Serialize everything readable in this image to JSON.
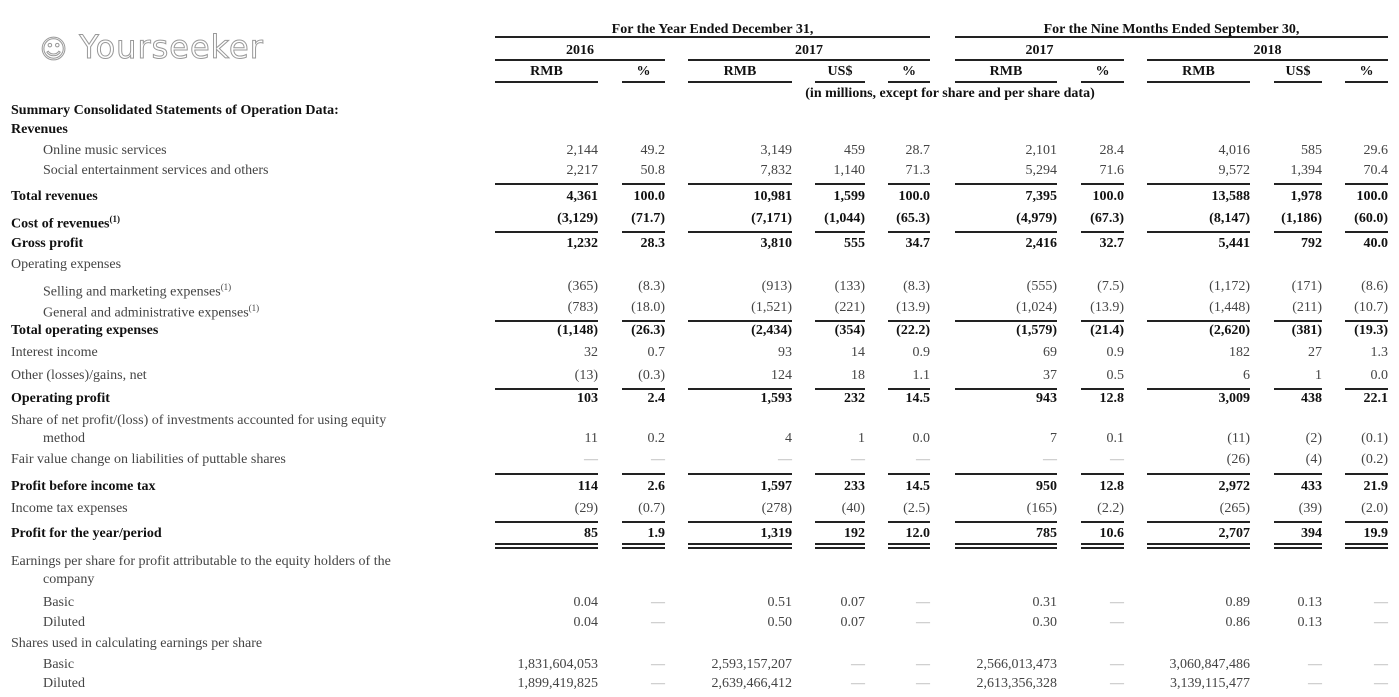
{
  "header": {
    "group_year": "For the Year Ended December 31,",
    "group_nine": "For the Nine Months Ended September 30,",
    "years": [
      "2016",
      "2017",
      "2017",
      "2018"
    ],
    "units": [
      "RMB",
      "%",
      "RMB",
      "US$",
      "%",
      "RMB",
      "%",
      "RMB",
      "US$",
      "%"
    ],
    "note": "(in millions, except for share and per share data)"
  },
  "rows": [
    {
      "label": "Summary Consolidated Statements of Operation Data:",
      "bold": true
    },
    {
      "label": "Revenues",
      "bold": true
    },
    {
      "label": "Online music services",
      "indent": true,
      "values": [
        "2,144",
        "49.2",
        "3,149",
        "459",
        "28.7",
        "2,101",
        "28.4",
        "4,016",
        "585",
        "29.6"
      ]
    },
    {
      "label": "Social entertainment services and others",
      "indent": true,
      "values": [
        "2,217",
        "50.8",
        "7,832",
        "1,140",
        "71.3",
        "5,294",
        "71.6",
        "9,572",
        "1,394",
        "70.4"
      ]
    },
    {
      "label": "Total revenues",
      "bold": true,
      "values": [
        "4,361",
        "100.0",
        "10,981",
        "1,599",
        "100.0",
        "7,395",
        "100.0",
        "13,588",
        "1,978",
        "100.0"
      ]
    },
    {
      "label": "Cost of revenues",
      "sup": "(1)",
      "bold": true,
      "values": [
        "(3,129)",
        "(71.7)",
        "(7,171)",
        "(1,044)",
        "(65.3)",
        "(4,979)",
        "(67.3)",
        "(8,147)",
        "(1,186)",
        "(60.0)"
      ]
    },
    {
      "label": "Gross profit",
      "bold": true,
      "values": [
        "1,232",
        "28.3",
        "3,810",
        "555",
        "34.7",
        "2,416",
        "32.7",
        "5,441",
        "792",
        "40.0"
      ]
    },
    {
      "label": "Operating expenses"
    },
    {
      "label": "Selling and marketing expenses",
      "sup": "(1)",
      "indent": true,
      "values": [
        "(365)",
        "(8.3)",
        "(913)",
        "(133)",
        "(8.3)",
        "(555)",
        "(7.5)",
        "(1,172)",
        "(171)",
        "(8.6)"
      ]
    },
    {
      "label": "General and administrative expenses",
      "sup": "(1)",
      "indent": true,
      "values": [
        "(783)",
        "(18.0)",
        "(1,521)",
        "(221)",
        "(13.9)",
        "(1,024)",
        "(13.9)",
        "(1,448)",
        "(211)",
        "(10.7)"
      ]
    },
    {
      "label": "Total operating expenses",
      "bold": true,
      "values": [
        "(1,148)",
        "(26.3)",
        "(2,434)",
        "(354)",
        "(22.2)",
        "(1,579)",
        "(21.4)",
        "(2,620)",
        "(381)",
        "(19.3)"
      ]
    },
    {
      "label": "Interest income",
      "values": [
        "32",
        "0.7",
        "93",
        "14",
        "0.9",
        "69",
        "0.9",
        "182",
        "27",
        "1.3"
      ]
    },
    {
      "label": "Other (losses)/gains, net",
      "values": [
        "(13)",
        "(0.3)",
        "124",
        "18",
        "1.1",
        "37",
        "0.5",
        "6",
        "1",
        "0.0"
      ]
    },
    {
      "label": "Operating profit",
      "bold": true,
      "values": [
        "103",
        "2.4",
        "1,593",
        "232",
        "14.5",
        "943",
        "12.8",
        "3,009",
        "438",
        "22.1"
      ]
    },
    {
      "label": "Share of net profit/(loss) of investments accounted for using equity",
      "label2": "method",
      "values": [
        "11",
        "0.2",
        "4",
        "1",
        "0.0",
        "7",
        "0.1",
        "(11)",
        "(2)",
        "(0.1)"
      ]
    },
    {
      "label": "Fair value change on liabilities of puttable shares",
      "values": [
        "—",
        "—",
        "—",
        "—",
        "—",
        "—",
        "—",
        "(26)",
        "(4)",
        "(0.2)"
      ]
    },
    {
      "label": "Profit before income tax",
      "bold": true,
      "values": [
        "114",
        "2.6",
        "1,597",
        "233",
        "14.5",
        "950",
        "12.8",
        "2,972",
        "433",
        "21.9"
      ]
    },
    {
      "label": "Income tax expenses",
      "values": [
        "(29)",
        "(0.7)",
        "(278)",
        "(40)",
        "(2.5)",
        "(165)",
        "(2.2)",
        "(265)",
        "(39)",
        "(2.0)"
      ]
    },
    {
      "label": "Profit for the year/period",
      "bold": true,
      "values": [
        "85",
        "1.9",
        "1,319",
        "192",
        "12.0",
        "785",
        "10.6",
        "2,707",
        "394",
        "19.9"
      ]
    },
    {
      "label": "Earnings per share for profit attributable to the equity holders of the",
      "label2": "company"
    },
    {
      "label": "Basic",
      "indent": true,
      "values": [
        "0.04",
        "—",
        "0.51",
        "0.07",
        "—",
        "0.31",
        "—",
        "0.89",
        "0.13",
        "—"
      ]
    },
    {
      "label": "Diluted",
      "indent": true,
      "values": [
        "0.04",
        "—",
        "0.50",
        "0.07",
        "—",
        "0.30",
        "—",
        "0.86",
        "0.13",
        "—"
      ]
    },
    {
      "label": "Shares used in calculating earnings per share"
    },
    {
      "label": "Basic",
      "indent": true,
      "values": [
        "1,831,604,053",
        "—",
        "2,593,157,207",
        "—",
        "—",
        "2,566,013,473",
        "—",
        "3,060,847,486",
        "—",
        "—"
      ]
    },
    {
      "label": "Diluted",
      "indent": true,
      "values": [
        "1,899,419,825",
        "—",
        "2,639,466,412",
        "—",
        "—",
        "2,613,356,328",
        "—",
        "3,139,115,477",
        "—",
        "—"
      ]
    }
  ],
  "watermark": "Yourseeker"
}
